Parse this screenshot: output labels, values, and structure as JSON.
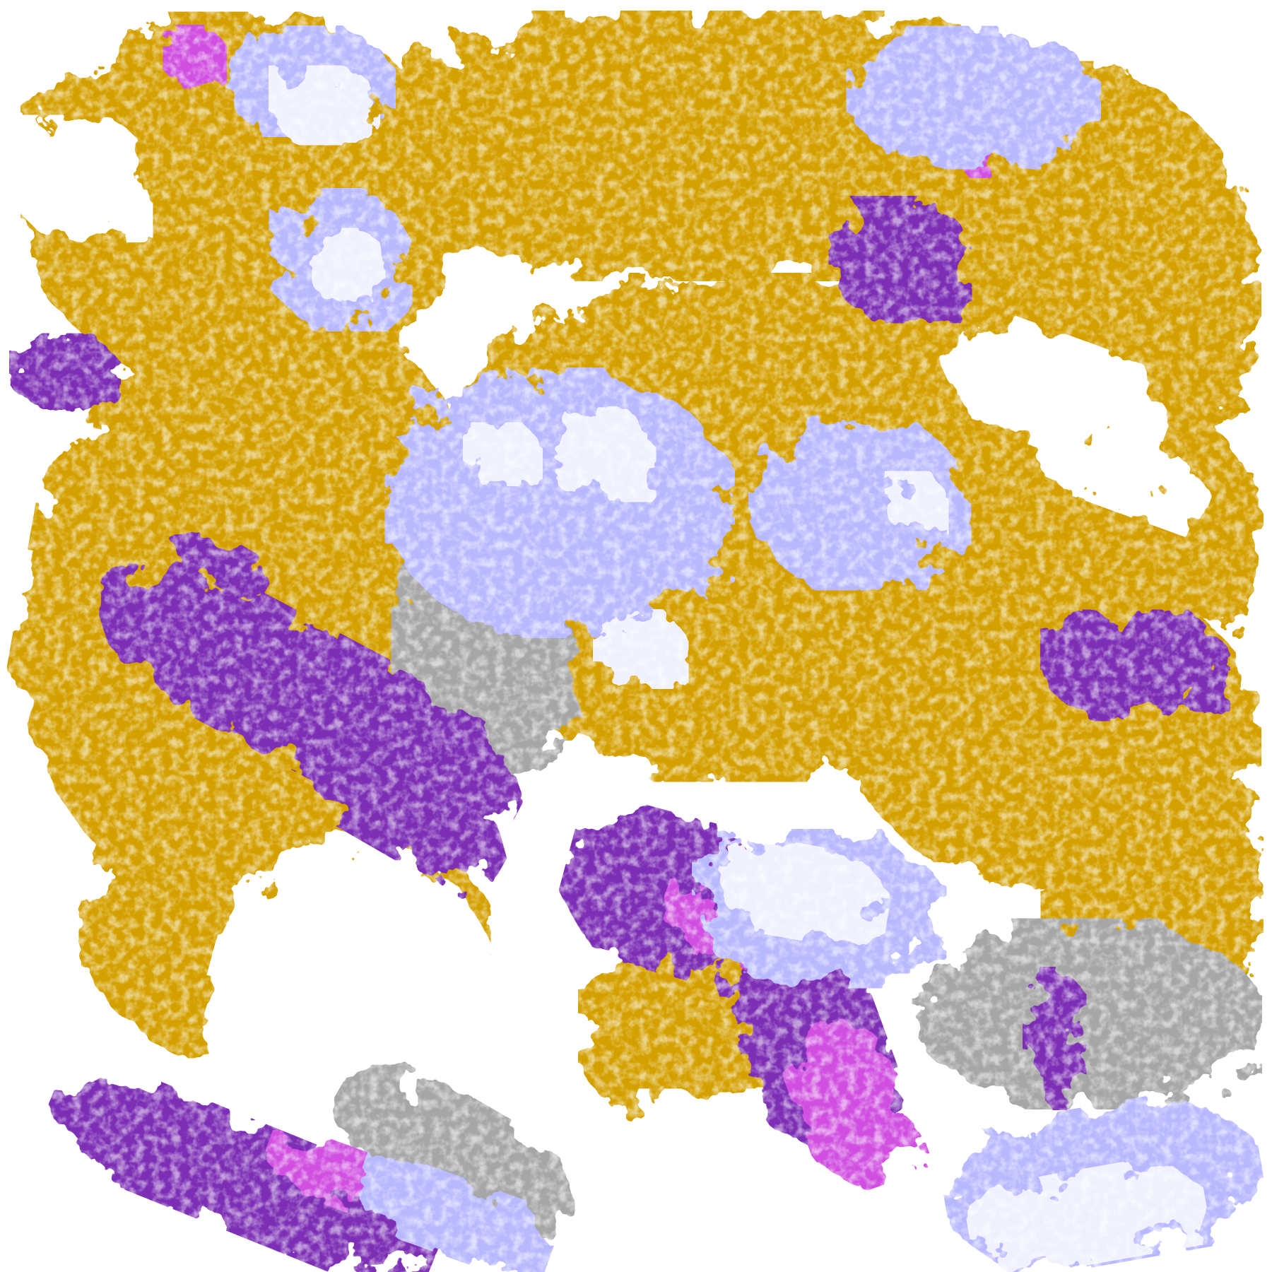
{
  "image": {
    "kind": "false-color satellite cloud classification",
    "colors": {
      "clear": "#ffffff",
      "low_cloud": "#d4a000",
      "mid_gray": "#a6a6a6",
      "thin_cirrus": "#b8b8ff",
      "thick_cloud": "#f0f0ff",
      "purple": "#7b2fb5",
      "magenta": "#d050e0"
    }
  }
}
